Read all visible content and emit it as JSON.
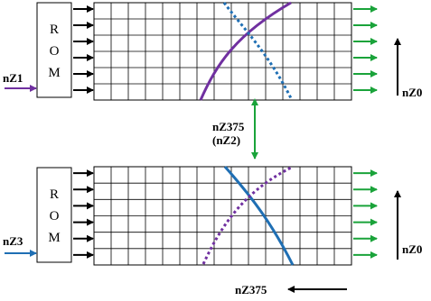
{
  "colors": {
    "purple": "#7030a0",
    "blue": "#1f6fb4",
    "green": "#1aa33a",
    "black": "#000000"
  },
  "top_block": {
    "rom_letters": [
      "R",
      "O",
      "M"
    ],
    "input_label": "nZ1",
    "axis_label": "nZ0",
    "solid_curve_color": "purple",
    "dotted_curve_color": "blue"
  },
  "middle": {
    "label_line1": "nZ375",
    "label_line2": "(nZ2)"
  },
  "bottom_block": {
    "rom_letters": [
      "R",
      "O",
      "M"
    ],
    "input_label": "nZ3",
    "axis_label": "nZ0",
    "solid_curve_color": "blue",
    "dotted_curve_color": "purple"
  },
  "bottom_axis": {
    "label": "nZ375"
  }
}
